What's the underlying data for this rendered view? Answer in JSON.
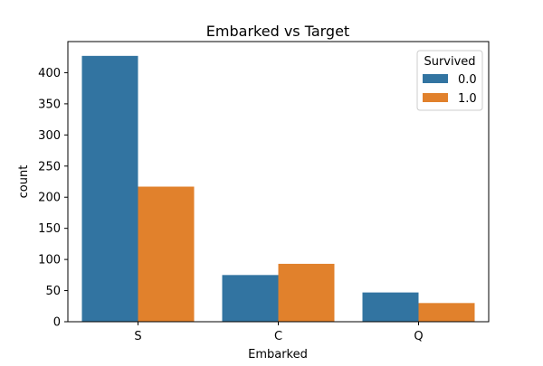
{
  "chart_data": {
    "type": "bar",
    "title": "Embarked vs Target",
    "xlabel": "Embarked",
    "ylabel": "count",
    "categories": [
      "S",
      "C",
      "Q"
    ],
    "series": [
      {
        "name": "0.0",
        "values": [
          427,
          75,
          47
        ],
        "color": "#3274a1"
      },
      {
        "name": "1.0",
        "values": [
          217,
          93,
          30
        ],
        "color": "#e1812c"
      }
    ],
    "ylim": [
      0,
      450
    ],
    "yticks": [
      0,
      50,
      100,
      150,
      200,
      250,
      300,
      350,
      400
    ],
    "grid": false,
    "legend": {
      "title": "Survived",
      "placement": "top-right"
    }
  }
}
